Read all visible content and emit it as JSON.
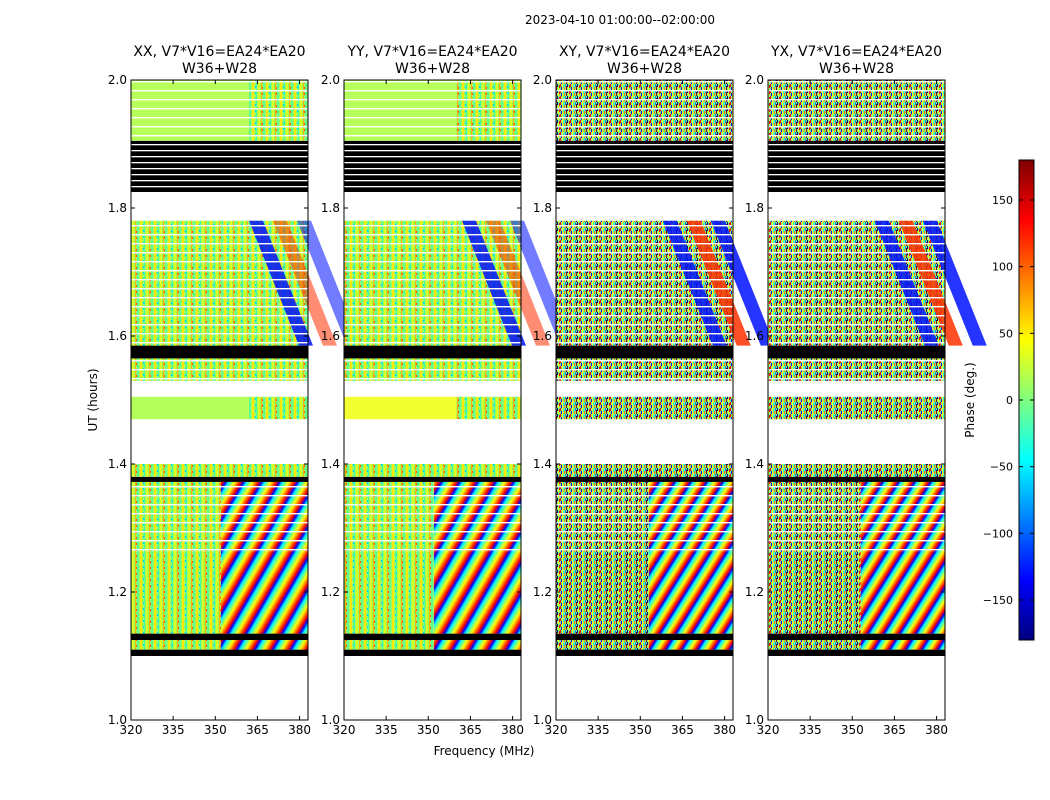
{
  "figure_title": "2023-04-10  01:00:00--02:00:00",
  "colorbar": {
    "label": "Phase (deg.)",
    "range": [
      -180,
      180
    ],
    "ticks": [
      150,
      100,
      50,
      0,
      -50,
      -100,
      -150
    ],
    "tick_labels": [
      "150",
      "100",
      "50",
      "0",
      "−50",
      "−100",
      "−150"
    ],
    "colormap": [
      "#00007f",
      "#0000ff",
      "#007fff",
      "#00ffff",
      "#7fff7f",
      "#ffff00",
      "#ff7f00",
      "#ff0000",
      "#7f0000"
    ]
  },
  "chart_data": [
    {
      "type": "heatmap",
      "title_line1": "XX, V7*V16=EA24*EA20",
      "title_line2": "W36+W28",
      "ylabel": "UT (hours)",
      "xlim": [
        320,
        383
      ],
      "ylim": [
        1.0,
        2.0
      ],
      "xticks": [
        320,
        335,
        350,
        365,
        380
      ],
      "yticks": [
        "1.0",
        "1.2",
        "1.4",
        "1.6",
        "1.8",
        "2.0"
      ],
      "style": "low"
    },
    {
      "type": "heatmap",
      "title_line1": "YY, V7*V16=EA24*EA20",
      "title_line2": "W36+W28",
      "xlabel": "Frequency (MHz)",
      "xlim": [
        320,
        383
      ],
      "ylim": [
        1.0,
        2.0
      ],
      "xticks": [
        320,
        335,
        350,
        365,
        380
      ],
      "yticks": [
        "1.0",
        "1.2",
        "1.4",
        "1.6",
        "1.8",
        "2.0"
      ],
      "style": "low"
    },
    {
      "type": "heatmap",
      "title_line1": "XY, V7*V16=EA24*EA20",
      "title_line2": "W36+W28",
      "xlim": [
        320,
        383
      ],
      "ylim": [
        1.0,
        2.0
      ],
      "xticks": [
        320,
        335,
        350,
        365,
        380
      ],
      "yticks": [
        "1.0",
        "1.2",
        "1.4",
        "1.6",
        "1.8",
        "2.0"
      ],
      "style": "cross"
    },
    {
      "type": "heatmap",
      "title_line1": "YX, V7*V16=EA24*EA20",
      "title_line2": "W36+W28",
      "xlim": [
        320,
        383
      ],
      "ylim": [
        1.0,
        2.0
      ],
      "xticks": [
        320,
        335,
        350,
        365,
        380
      ],
      "yticks": [
        "1.0",
        "1.2",
        "1.4",
        "1.6",
        "1.8",
        "2.0"
      ],
      "style": "cross"
    }
  ],
  "bands": [
    {
      "y0": 1.1,
      "y1": 1.11,
      "kind": "black"
    },
    {
      "y0": 1.11,
      "y1": 1.125,
      "kind": "fringe"
    },
    {
      "y0": 1.125,
      "y1": 1.135,
      "kind": "black"
    },
    {
      "y0": 1.135,
      "y1": 1.263,
      "kind": "fringe"
    },
    {
      "y0": 1.263,
      "y1": 1.372,
      "kind": "fringe-lines"
    },
    {
      "y0": 1.372,
      "y1": 1.38,
      "kind": "black"
    },
    {
      "y0": 1.38,
      "y1": 1.4,
      "kind": "noise"
    },
    {
      "y0": 1.47,
      "y1": 1.505,
      "kind": "flat"
    },
    {
      "y0": 1.53,
      "y1": 1.565,
      "kind": "noise-lines"
    },
    {
      "y0": 1.565,
      "y1": 1.585,
      "kind": "black"
    },
    {
      "y0": 1.585,
      "y1": 1.78,
      "kind": "diagonal"
    },
    {
      "y0": 1.825,
      "y1": 1.905,
      "kind": "black-lines"
    },
    {
      "y0": 1.905,
      "y1": 2.0,
      "kind": "flat-lines"
    }
  ]
}
